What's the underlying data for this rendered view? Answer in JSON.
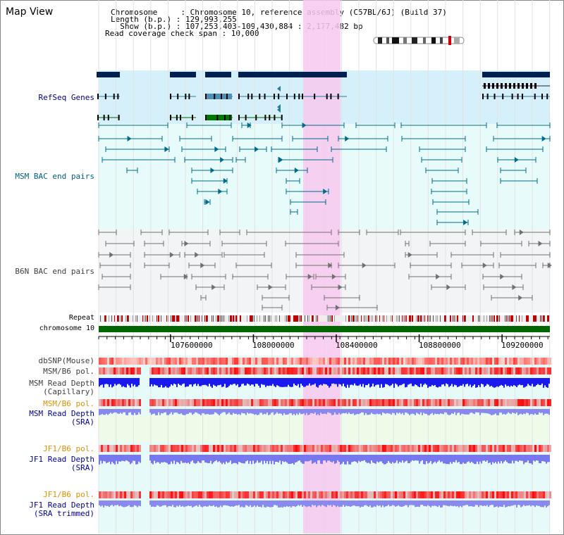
{
  "header": {
    "title": "Map View",
    "info_lines": [
      "Chromosome     : Chromosome 10, reference assembly (C57BL/6J) (Build 37)",
      "Length (b.p.) : 129,993,255",
      "  Show (b.p.) : 107,253,403-109,430,884 : 2,177,482 bp",
      "Read coverage check span : 10,000"
    ]
  },
  "tracks": {
    "refseq": "RefSeq Genes",
    "msm_bac": "MSM BAC end pairs",
    "b6n_bac": "B6N BAC end pairs",
    "repeat": "Repeat",
    "chromosome": "chromosome 10",
    "dbsnp": "dbSNP(Mouse)",
    "msm_b6_pol_1": "MSM/B6 pol.",
    "msm_read_depth_cap_1": "MSM Read Depth",
    "msm_read_depth_cap_2": "(Capillary)",
    "msm_b6_pol_2": "MSM/B6 pol.",
    "msm_read_depth_sra_1": "MSM Read Depth",
    "msm_read_depth_sra_2": "(SRA)",
    "jf1_b6_pol_1": "JF1/B6 pol.",
    "jf1_read_depth_sra_1": "JF1 Read Depth",
    "jf1_read_depth_sra_2": "(SRA)",
    "jf1_b6_pol_2": "JF1/B6 pol.",
    "jf1_read_depth_trim_1": "JF1 Read Depth",
    "jf1_read_depth_trim_2": "(SRA trimmed)"
  },
  "axis": {
    "start": 107253403,
    "end": 109430884,
    "ticks": [
      "107600000",
      "108000000",
      "108400000",
      "108800000",
      "109200000"
    ],
    "tick_values": [
      107600000,
      108000000,
      108400000,
      108800000,
      109200000
    ]
  },
  "highlight": {
    "start": 108240000,
    "end": 108420000
  },
  "colors": {
    "refseq_label": "#000080",
    "bac_label": "#006080",
    "b6n_label": "#404040",
    "pol_label_orange": "#e09000",
    "depth_label_blue": "#0000a0",
    "highlight": "#f7c8ef",
    "chromosome": "#006600",
    "gene_dark": "#002050",
    "msm_bac_color": "#006b8a",
    "b6n_bac_color": "#707070"
  }
}
